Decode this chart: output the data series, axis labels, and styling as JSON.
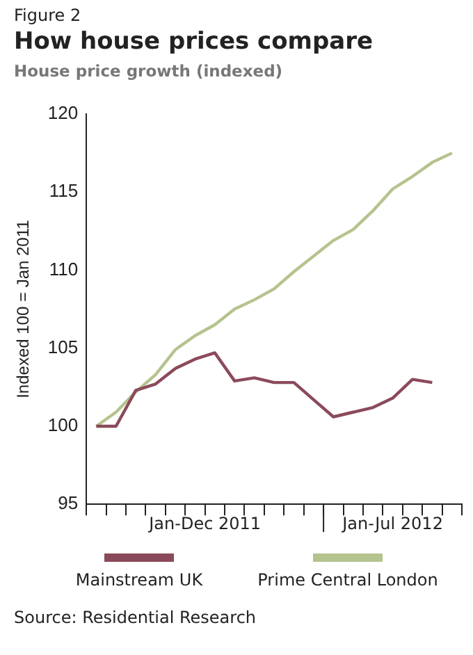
{
  "chart_data": {
    "type": "line",
    "title": "How house prices compare",
    "subtitle": "House price growth (indexed)",
    "ylabel": "Indexed 100 = Jan 2011",
    "annotations": [
      "Figure 2",
      "Jan-Dec 2011",
      "Jan-Jul 2012",
      "Source: Residential Research"
    ],
    "categories": [
      null,
      null,
      null,
      null,
      null,
      null,
      null,
      null,
      null,
      null,
      null,
      null,
      null,
      null,
      null,
      null,
      null,
      null,
      null
    ],
    "series": [
      {
        "name": "Mainstream UK",
        "color": "#8b4a5a",
        "values": [
          100,
          100,
          102.3,
          102.7,
          103.7,
          104.3,
          104.7,
          102.9,
          103.1,
          102.8,
          102.8,
          101.7,
          100.6,
          100.9,
          101.2,
          101.8,
          103.0,
          102.8,
          null
        ]
      },
      {
        "name": "Prime Central London",
        "color": "#b5c38f",
        "values": [
          100,
          100.9,
          102.2,
          103.3,
          104.9,
          105.8,
          106.5,
          107.5,
          108.1,
          108.8,
          109.9,
          110.9,
          111.9,
          112.6,
          113.8,
          115.2,
          116.0,
          116.9,
          117.5
        ]
      }
    ],
    "ylim": [
      95,
      120
    ],
    "yticks": [
      95,
      100,
      105,
      110,
      115,
      120
    ],
    "grid": false,
    "legend": "bottom",
    "marker": "none",
    "line_style": "solid"
  }
}
